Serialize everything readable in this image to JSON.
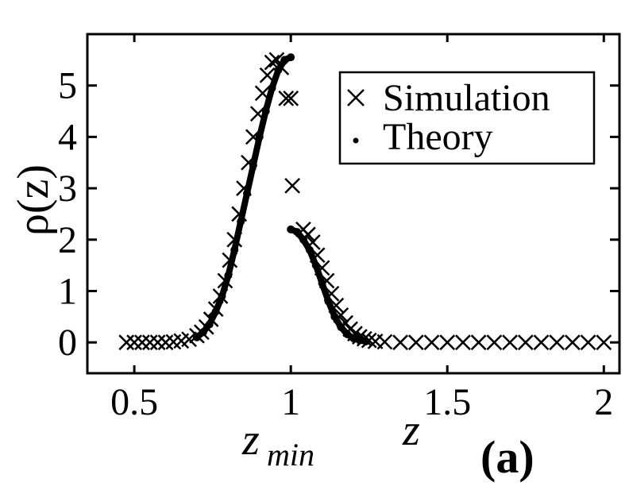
{
  "chart_data": {
    "type": "scatter",
    "ylabel": "ρ(z)",
    "xlabel_parts": {
      "zmin_z": "z",
      "zmin_sub": "min",
      "z": "z"
    },
    "panel_label": "(a)",
    "xlim": [
      0.35,
      2.05
    ],
    "ylim": [
      -0.6,
      6.0
    ],
    "xticks": [
      0.5,
      1,
      1.5,
      2
    ],
    "xtick_labels": [
      "0.5",
      "1",
      "1.5",
      "2"
    ],
    "yticks": [
      0,
      1,
      2,
      3,
      4,
      5
    ],
    "ytick_labels": [
      "0",
      "1",
      "2",
      "3",
      "4",
      "5"
    ],
    "grid": false,
    "legend_position": "top-right",
    "series": [
      {
        "name": "Simulation",
        "marker": "x",
        "color": "#000000",
        "x": [
          0.475,
          0.5,
          0.525,
          0.55,
          0.575,
          0.6,
          0.625,
          0.65,
          0.675,
          0.7,
          0.715,
          0.73,
          0.745,
          0.76,
          0.775,
          0.79,
          0.805,
          0.82,
          0.835,
          0.85,
          0.865,
          0.88,
          0.895,
          0.91,
          0.925,
          0.94,
          0.955,
          0.97,
          0.985,
          1.0,
          1.005,
          1.04,
          1.055,
          1.07,
          1.085,
          1.1,
          1.115,
          1.13,
          1.145,
          1.16,
          1.175,
          1.19,
          1.205,
          1.22,
          1.235,
          1.25,
          1.27,
          1.3,
          1.35,
          1.4,
          1.45,
          1.5,
          1.55,
          1.6,
          1.65,
          1.7,
          1.75,
          1.8,
          1.85,
          1.9,
          1.95,
          2.0
        ],
        "y": [
          0,
          0,
          0,
          0,
          0,
          0,
          0.01,
          0.03,
          0.06,
          0.13,
          0.2,
          0.3,
          0.45,
          0.65,
          0.9,
          1.2,
          1.6,
          2.0,
          2.5,
          3.0,
          3.5,
          4.0,
          4.45,
          4.85,
          5.2,
          5.45,
          5.5,
          5.35,
          4.75,
          4.75,
          3.05,
          2.2,
          2.1,
          1.95,
          1.7,
          1.45,
          1.2,
          0.95,
          0.72,
          0.53,
          0.38,
          0.26,
          0.17,
          0.11,
          0.07,
          0.04,
          0.02,
          0.01,
          0,
          0,
          0,
          0,
          0,
          0,
          0,
          0,
          0,
          0,
          0,
          0,
          0,
          0
        ]
      },
      {
        "name": "Theory",
        "marker": "dot",
        "color": "#000000",
        "x": [
          0.7,
          0.72,
          0.74,
          0.76,
          0.78,
          0.8,
          0.82,
          0.84,
          0.86,
          0.88,
          0.9,
          0.92,
          0.94,
          0.96,
          0.98,
          1.0,
          1.0,
          1.02,
          1.04,
          1.06,
          1.08,
          1.1,
          1.12,
          1.14,
          1.16,
          1.18,
          1.2,
          1.22,
          1.24
        ],
        "y": [
          0.1,
          0.2,
          0.35,
          0.6,
          0.9,
          1.3,
          1.8,
          2.35,
          2.9,
          3.45,
          4.0,
          4.5,
          4.95,
          5.3,
          5.5,
          5.55,
          2.2,
          2.15,
          2.0,
          1.8,
          1.5,
          1.15,
          0.8,
          0.5,
          0.3,
          0.16,
          0.08,
          0.04,
          0.02
        ]
      }
    ]
  }
}
